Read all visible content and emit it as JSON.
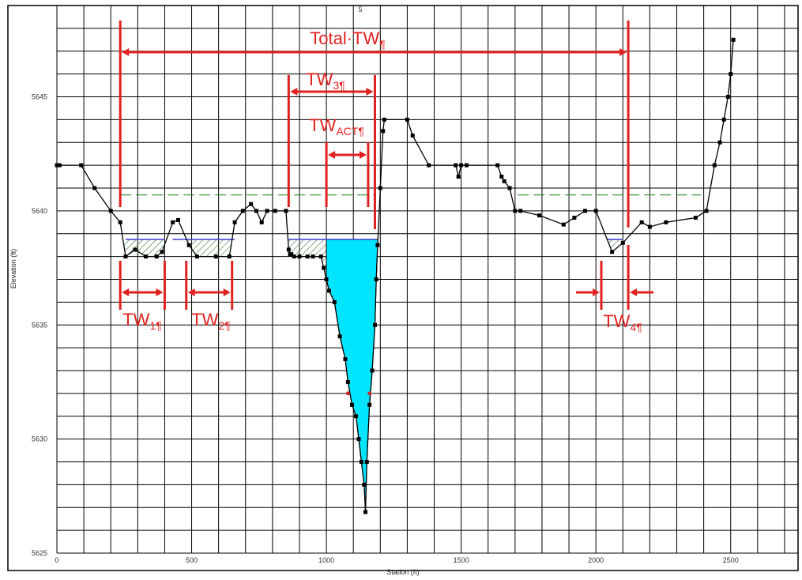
{
  "chart_data": {
    "type": "line",
    "title": "",
    "top_label": "5",
    "xlabel": "Station (ft)",
    "ylabel": "Elevation (ft)",
    "xlim": [
      0,
      2750
    ],
    "ylim": [
      5625,
      5649
    ],
    "x_ticks": [
      0,
      500,
      1000,
      1500,
      2000,
      2500
    ],
    "y_ticks": [
      5625,
      5630,
      5635,
      5640,
      5645
    ],
    "x_tick_labels": [
      "0",
      "500",
      "1000",
      "1500",
      "2000",
      "2500"
    ],
    "y_tick_labels": [
      "5625",
      "5630",
      "5635",
      "5640",
      "5645"
    ],
    "grid": true,
    "series": [
      {
        "color": "#000000",
        "x": [
          0,
          10,
          90,
          140,
          200,
          235,
          255,
          290,
          330,
          370,
          390,
          430,
          450,
          490,
          520,
          590,
          640,
          660,
          690,
          720,
          740,
          760,
          780,
          810,
          850,
          860,
          865,
          870,
          880,
          900,
          930,
          950,
          980,
          990,
          1000,
          1010,
          1030,
          1050,
          1070,
          1080,
          1095,
          1110,
          1120,
          1130,
          1140,
          1145,
          1150,
          1160,
          1170,
          1180,
          1185,
          1190,
          1200,
          1210,
          1215,
          1300,
          1320,
          1380,
          1480,
          1490,
          1500,
          1520,
          1635,
          1650,
          1660,
          1680,
          1700,
          1720,
          1790,
          1880,
          1920,
          1960,
          2000,
          2060,
          2100,
          2170,
          2200,
          2260,
          2370,
          2410,
          2440,
          2460,
          2475,
          2490,
          2500,
          2510
        ],
        "y": [
          5642.0,
          5642.0,
          5642.0,
          5641.0,
          5640.0,
          5639.5,
          5638.0,
          5638.3,
          5638.0,
          5638.0,
          5638.2,
          5639.5,
          5639.6,
          5638.5,
          5638.0,
          5638.0,
          5638.0,
          5639.5,
          5640.0,
          5640.3,
          5640.0,
          5639.5,
          5640.0,
          5640.0,
          5640.0,
          5638.3,
          5638.1,
          5638.1,
          5638.0,
          5638.0,
          5638.0,
          5638.0,
          5638.0,
          5637.5,
          5637.0,
          5636.5,
          5636.0,
          5634.5,
          5633.5,
          5632.5,
          5631.5,
          5631.0,
          5630.0,
          5629.0,
          5628.0,
          5626.8,
          5629.0,
          5631.5,
          5633.0,
          5635.0,
          5637.0,
          5638.5,
          5641.0,
          5643.5,
          5644.0,
          5644.0,
          5643.3,
          5642.0,
          5642.0,
          5641.5,
          5642.0,
          5642.0,
          5642.0,
          5641.5,
          5641.3,
          5641.0,
          5640.0,
          5640.0,
          5639.8,
          5639.4,
          5639.7,
          5640.0,
          5640.0,
          5638.2,
          5638.6,
          5639.5,
          5639.3,
          5639.5,
          5639.7,
          5640.0,
          5642.0,
          5643.0,
          5644.0,
          5645.0,
          5646.0,
          5647.5
        ]
      }
    ],
    "water_surface_elevation": 5638.75,
    "dashed_level_elevation": 5640.7,
    "annotations": [
      {
        "main": "Total·TW",
        "sub": "",
        "mark": "¶",
        "x1": 235,
        "x2": 2120
      },
      {
        "main": "TW",
        "sub": "3",
        "mark": "¶",
        "x1": 860,
        "x2": 1180
      },
      {
        "main": "TW",
        "sub": "ACT",
        "mark": "¶",
        "x1": 1000,
        "x2": 1155
      },
      {
        "main": "TW",
        "sub": "1",
        "mark": "¶",
        "x1": 235,
        "x2": 400
      },
      {
        "main": "TW",
        "sub": "2",
        "mark": "¶",
        "x1": 480,
        "x2": 650
      },
      {
        "main": "TW",
        "sub": "4",
        "mark": "¶",
        "x1": 2020,
        "x2": 2120
      }
    ],
    "colors": {
      "grid": "#000000",
      "profile": "#000000",
      "water_fill": "#00e5ff",
      "annotation": "#e0211f",
      "dashed_level": "#2e8b2e",
      "hatch": "#2e7d32",
      "water_surface": "#3b3bd6"
    }
  }
}
